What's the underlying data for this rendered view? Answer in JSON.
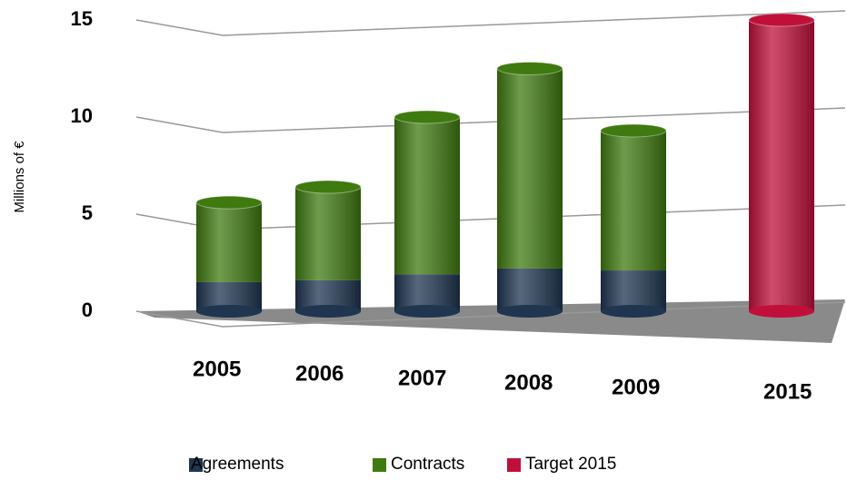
{
  "chart_data": {
    "type": "bar",
    "stacked": true,
    "y_label": "Millions of €",
    "categories": [
      "2005",
      "2006",
      "2007",
      "2008",
      "2009",
      "2015"
    ],
    "series": [
      {
        "name": "Agreements",
        "color": "#1f3550",
        "values": [
          1.5,
          1.6,
          1.9,
          2.2,
          2.1,
          null
        ]
      },
      {
        "name": "Contracts",
        "color": "#3f7a10",
        "values": [
          4.1,
          4.8,
          8.1,
          10.3,
          7.2,
          null
        ]
      },
      {
        "name": "Target 2015",
        "color": "#c0103a",
        "values": [
          null,
          null,
          null,
          null,
          null,
          15
        ]
      }
    ],
    "ylim": [
      0,
      15
    ],
    "yticks": [
      0,
      5,
      10,
      15
    ],
    "grid": true
  }
}
